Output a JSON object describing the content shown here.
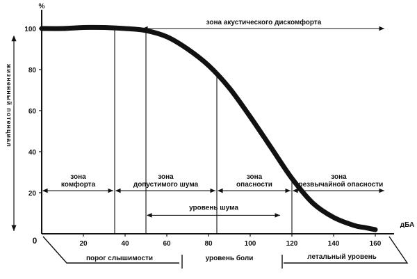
{
  "chart_data": {
    "type": "line",
    "title": "",
    "xlabel": "дБА",
    "ylabel": "жизненный потенциал",
    "yunit": "%",
    "xlim": [
      0,
      165
    ],
    "ylim": [
      0,
      105
    ],
    "x_ticks": [
      20,
      40,
      60,
      80,
      100,
      120,
      140,
      160
    ],
    "y_ticks": [
      20,
      40,
      60,
      80,
      100
    ],
    "origin_label": "0",
    "grid": false,
    "legend": "none",
    "series": [
      {
        "x": [
          0,
          10,
          20,
          30,
          40,
          50,
          60,
          70,
          80,
          90,
          100,
          110,
          120,
          130,
          140,
          150,
          155,
          160
        ],
        "y": [
          100,
          100,
          100.5,
          100.5,
          100,
          99,
          96,
          90,
          82,
          71,
          57,
          42,
          27,
          15,
          8,
          4,
          3,
          2
        ]
      }
    ],
    "vertical_markers": [
      35,
      50,
      84,
      120
    ],
    "zones": [
      {
        "label": "зона комфорта",
        "from": 0,
        "to": 35,
        "y": 21
      },
      {
        "label": "зона допустимого шума",
        "from": 35,
        "to": 84,
        "y": 21
      },
      {
        "label": "зона опасности",
        "from": 84,
        "to": 120,
        "y": 21
      },
      {
        "label": "зона чрезвычайной опасности",
        "from": 120,
        "to": 165,
        "y": 21
      },
      {
        "label": "зона акустического дискомфорта",
        "from": 48,
        "to": 165,
        "y": 100
      },
      {
        "label": "уровень шума",
        "from": 50,
        "to": 115,
        "y": 9
      }
    ],
    "bottom_labels": [
      "порог слышимости",
      "уровень боли",
      "летальный уровень"
    ]
  }
}
